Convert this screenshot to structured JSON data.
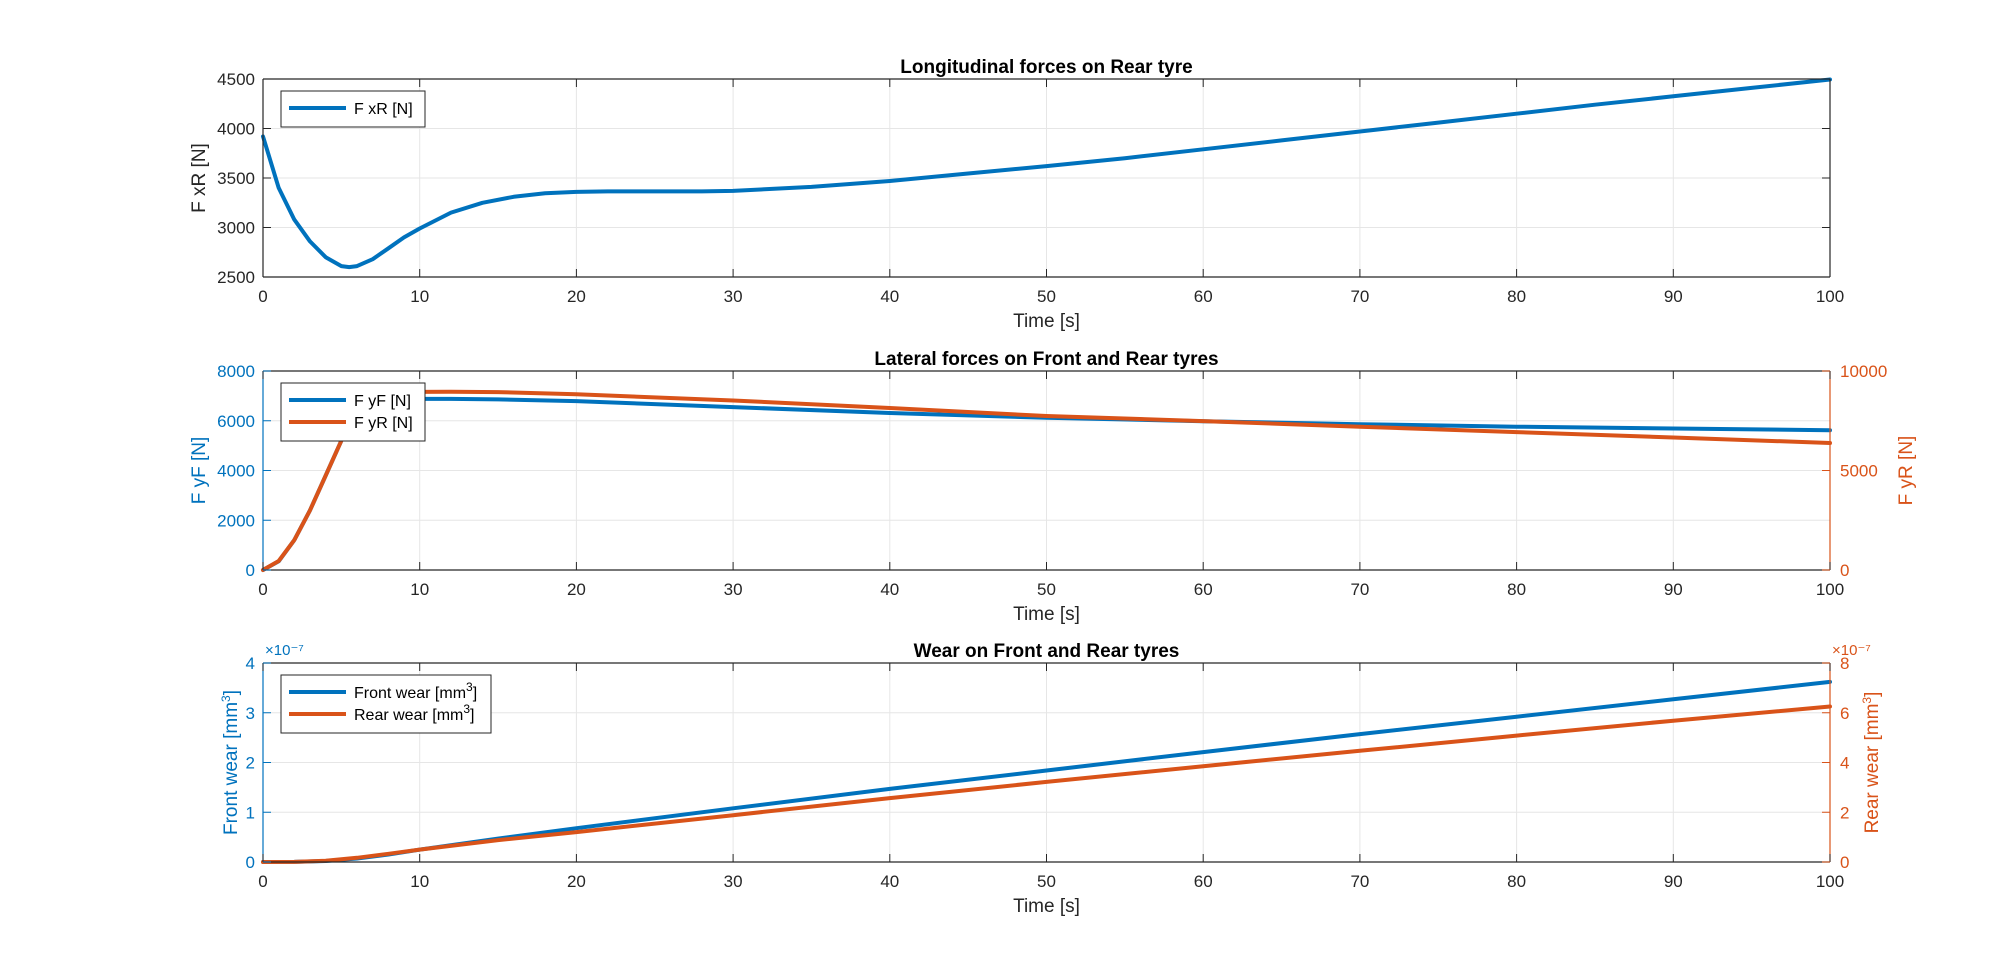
{
  "colors": {
    "blue": "#0072BD",
    "orange": "#D95319",
    "axis": "#262626",
    "grid": "#E6E6E6"
  },
  "chart_data": [
    {
      "type": "line",
      "title": "Longitudinal forces on Rear tyre",
      "xlabel": "Time [s]",
      "ylabel": "F xR [N]",
      "xlim": [
        0,
        100
      ],
      "ylim": [
        2500,
        4500
      ],
      "xticks": [
        "0",
        "10",
        "20",
        "30",
        "40",
        "50",
        "60",
        "70",
        "80",
        "90",
        "100"
      ],
      "yticks": [
        "2500",
        "3000",
        "3500",
        "4000",
        "4500"
      ],
      "grid": true,
      "legend_position": "top-left",
      "series": [
        {
          "name": "F xR [N]",
          "axis": "left",
          "color": "#0072BD",
          "x": [
            0,
            1,
            2,
            3,
            4,
            5,
            5.5,
            6,
            7,
            8,
            9,
            10,
            12,
            14,
            16,
            18,
            20,
            22,
            25,
            28,
            30,
            35,
            40,
            45,
            50,
            55,
            60,
            65,
            70,
            75,
            80,
            85,
            90,
            95,
            100
          ],
          "y": [
            3920,
            3400,
            3080,
            2860,
            2700,
            2610,
            2600,
            2610,
            2680,
            2790,
            2900,
            2990,
            3150,
            3250,
            3310,
            3345,
            3360,
            3365,
            3365,
            3365,
            3370,
            3410,
            3470,
            3545,
            3620,
            3700,
            3790,
            3880,
            3970,
            4060,
            4150,
            4240,
            4325,
            4410,
            4495
          ]
        }
      ]
    },
    {
      "type": "line",
      "title": "Lateral forces on Front and Rear tyres",
      "xlabel": "Time [s]",
      "ylabel": "F yF [N]",
      "ylabel_right": "F yR [N]",
      "xlim": [
        0,
        100
      ],
      "ylim": [
        0,
        8000
      ],
      "ylim_right": [
        0,
        10000
      ],
      "xticks": [
        "0",
        "10",
        "20",
        "30",
        "40",
        "50",
        "60",
        "70",
        "80",
        "90",
        "100"
      ],
      "yticks": [
        "0",
        "2000",
        "4000",
        "6000",
        "8000"
      ],
      "yticks_right": [
        "0",
        "5000",
        "10000"
      ],
      "grid": true,
      "legend_position": "top-left",
      "series": [
        {
          "name": "F yF [N]",
          "axis": "left",
          "color": "#0072BD",
          "x": [
            0,
            1,
            2,
            3,
            4,
            5,
            6,
            7,
            8,
            10,
            12,
            15,
            20,
            30,
            40,
            50,
            60,
            70,
            80,
            90,
            100
          ],
          "y": [
            0,
            350,
            1200,
            2400,
            3800,
            5200,
            6300,
            6750,
            6850,
            6880,
            6880,
            6860,
            6790,
            6550,
            6310,
            6120,
            5980,
            5860,
            5760,
            5690,
            5620
          ]
        },
        {
          "name": "F yR [N]",
          "axis": "right",
          "color": "#D95319",
          "x": [
            0,
            1,
            2,
            3,
            4,
            5,
            6,
            7,
            8,
            10,
            12,
            15,
            20,
            30,
            40,
            50,
            60,
            70,
            80,
            90,
            100
          ],
          "y": [
            0,
            450,
            1500,
            3000,
            4750,
            6500,
            7900,
            8600,
            8850,
            8950,
            8960,
            8940,
            8830,
            8520,
            8140,
            7740,
            7480,
            7200,
            6930,
            6660,
            6380
          ]
        }
      ]
    },
    {
      "type": "line",
      "title": "Wear on Front and Rear tyres",
      "xlabel": "Time [s]",
      "ylabel": "Front wear [mm³]",
      "ylabel_right": "Rear wear [mm³]",
      "exponent": "×10⁻⁷",
      "xlim": [
        0,
        100
      ],
      "ylim": [
        0,
        4e-07
      ],
      "ylim_right": [
        0,
        8e-07
      ],
      "xticks": [
        "0",
        "10",
        "20",
        "30",
        "40",
        "50",
        "60",
        "70",
        "80",
        "90",
        "100"
      ],
      "yticks": [
        "0",
        "1",
        "2",
        "3",
        "4"
      ],
      "yticks_right": [
        "0",
        "2",
        "4",
        "6",
        "8"
      ],
      "grid": true,
      "legend_position": "top-left",
      "series": [
        {
          "name": "Front wear [mm³]",
          "axis": "left",
          "color": "#0072BD",
          "x": [
            0,
            2,
            4,
            6,
            8,
            10,
            15,
            20,
            30,
            40,
            50,
            60,
            70,
            80,
            90,
            100
          ],
          "y": [
            0,
            2e-10,
            2e-09,
            7e-09,
            1.5e-08,
            2.5e-08,
            4.7e-08,
            6.8e-08,
            1.08e-07,
            1.47e-07,
            1.84e-07,
            2.21e-07,
            2.57e-07,
            2.92e-07,
            3.27e-07,
            3.62e-07
          ]
        },
        {
          "name": "Rear wear [mm³]",
          "axis": "right",
          "color": "#D95319",
          "x": [
            0,
            2,
            4,
            6,
            8,
            10,
            15,
            20,
            30,
            40,
            50,
            60,
            70,
            80,
            90,
            100
          ],
          "y": [
            0,
            4e-10,
            5e-09,
            1.7e-08,
            3.3e-08,
            5e-08,
            8.8e-08,
            1.2e-07,
            1.88e-07,
            2.57e-07,
            3.22e-07,
            3.85e-07,
            4.47e-07,
            5.08e-07,
            5.68e-07,
            6.25e-07
          ]
        }
      ]
    }
  ]
}
